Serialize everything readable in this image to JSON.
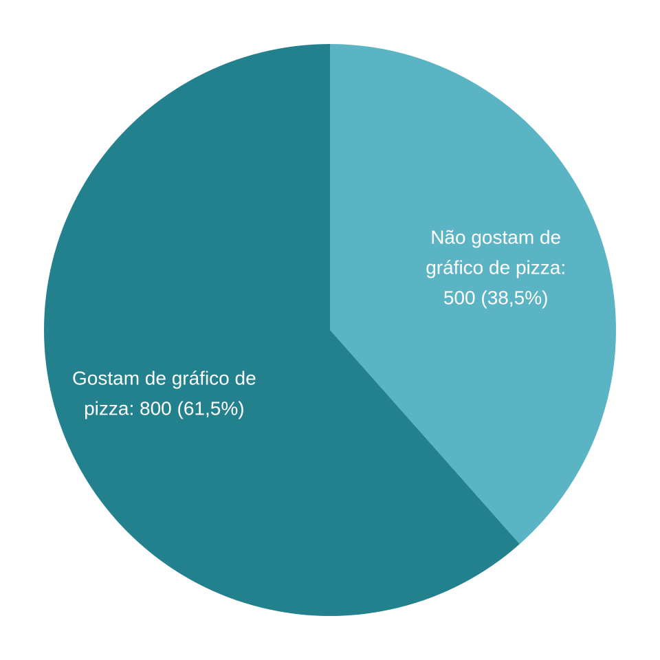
{
  "chart_data": {
    "type": "pie",
    "title": "",
    "slices": [
      {
        "key": "dislike",
        "value": 500,
        "percent": 38.5,
        "color": "#5bb4c4",
        "label_lines": [
          "Não gostam de",
          "gráfico de pizza:",
          "500 (38,5%)"
        ]
      },
      {
        "key": "like",
        "value": 800,
        "percent": 61.5,
        "color": "#23818d",
        "label_lines": [
          "Gostam de gráfico de",
          "pizza: 800 (61,5%)"
        ]
      }
    ]
  }
}
